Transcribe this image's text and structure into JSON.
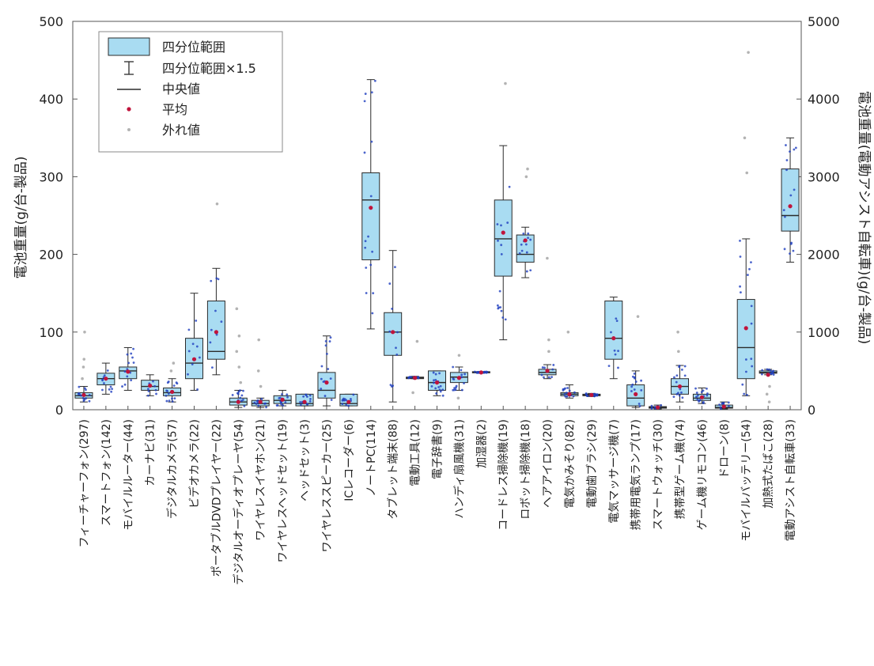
{
  "chart_data": {
    "type": "box",
    "ylabel": "電池重量(g/台-製品)",
    "y2label": "電池重量(電動アシスト自転車)(g/台-製品)",
    "ylim": [
      0,
      500
    ],
    "y2lim": [
      0,
      5000
    ],
    "yticks": [
      "0",
      "100",
      "200",
      "300",
      "400",
      "500"
    ],
    "y2ticks": [
      "0",
      "1000",
      "2000",
      "3000",
      "4000",
      "5000"
    ],
    "grid": false,
    "legend_position": "top-left",
    "legend": {
      "iqr": "四分位範囲",
      "whisker": "四分位範囲×1.5",
      "median": "中央値",
      "mean": "平均",
      "outlier": "外れ値"
    },
    "colors": {
      "box_fill": "#a9dcf2",
      "box_stroke": "#2b2b2b",
      "points": "#1f3fbf",
      "mean": "#c0143c",
      "outlier": "#b3b3b3"
    },
    "series": [
      {
        "label": "フィーチャーフォン(297)",
        "q1": 15,
        "median": 18,
        "q3": 22,
        "wlow": 10,
        "whigh": 30,
        "mean": 19,
        "outliers": [
          40,
          55,
          65,
          100
        ]
      },
      {
        "label": "スマートフォン(142)",
        "q1": 32,
        "median": 40,
        "q3": 47,
        "wlow": 20,
        "whigh": 60,
        "mean": 40,
        "outliers": []
      },
      {
        "label": "モバイルルーター(44)",
        "q1": 40,
        "median": 50,
        "q3": 55,
        "wlow": 25,
        "whigh": 80,
        "mean": 49,
        "outliers": []
      },
      {
        "label": "カーナビ(31)",
        "q1": 25,
        "median": 30,
        "q3": 38,
        "wlow": 18,
        "whigh": 45,
        "mean": 31,
        "outliers": []
      },
      {
        "label": "デジタルカメラ(57)",
        "q1": 18,
        "median": 22,
        "q3": 28,
        "wlow": 10,
        "whigh": 40,
        "mean": 23,
        "outliers": [
          50,
          60
        ]
      },
      {
        "label": "ビデオカメラ(22)",
        "q1": 40,
        "median": 60,
        "q3": 92,
        "wlow": 25,
        "whigh": 150,
        "mean": 65,
        "outliers": []
      },
      {
        "label": "ポータブルDVDプレイヤー(22)",
        "q1": 65,
        "median": 75,
        "q3": 140,
        "wlow": 45,
        "whigh": 182,
        "mean": 100,
        "outliers": [
          265
        ]
      },
      {
        "label": "デジタルオーディオプレーヤ(54)",
        "q1": 6,
        "median": 10,
        "q3": 15,
        "wlow": 3,
        "whigh": 25,
        "mean": 10,
        "outliers": [
          35,
          55,
          75,
          95,
          130
        ]
      },
      {
        "label": "ワイヤレスイヤホン(21)",
        "q1": 5,
        "median": 8,
        "q3": 12,
        "wlow": 3,
        "whigh": 15,
        "mean": 10,
        "outliers": [
          30,
          50,
          90
        ]
      },
      {
        "label": "ワイヤレスヘッドセット(19)",
        "q1": 8,
        "median": 12,
        "q3": 18,
        "wlow": 5,
        "whigh": 25,
        "mean": 13,
        "outliers": []
      },
      {
        "label": "ヘッドセット(3)",
        "q1": 5,
        "median": 8,
        "q3": 20,
        "wlow": 5,
        "whigh": 20,
        "mean": 10,
        "outliers": []
      },
      {
        "label": "ワイヤレススピーカー(25)",
        "q1": 15,
        "median": 25,
        "q3": 48,
        "wlow": 5,
        "whigh": 95,
        "mean": 35,
        "outliers": []
      },
      {
        "label": "ICレコーダー(6)",
        "q1": 5,
        "median": 8,
        "q3": 20,
        "wlow": 5,
        "whigh": 20,
        "mean": 10,
        "outliers": []
      },
      {
        "label": "ノートPC(114)",
        "q1": 193,
        "median": 270,
        "q3": 305,
        "wlow": 104,
        "whigh": 425,
        "mean": 260,
        "outliers": []
      },
      {
        "label": "タブレット端末(88)",
        "q1": 70,
        "median": 100,
        "q3": 125,
        "wlow": 10,
        "whigh": 205,
        "mean": 100,
        "outliers": []
      },
      {
        "label": "電動工具(12)",
        "q1": 40,
        "median": 41,
        "q3": 42,
        "wlow": 40,
        "whigh": 43,
        "mean": 41,
        "outliers": [
          22,
          88
        ]
      },
      {
        "label": "電子辞書(9)",
        "q1": 25,
        "median": 35,
        "q3": 50,
        "wlow": 18,
        "whigh": 50,
        "mean": 35,
        "outliers": []
      },
      {
        "label": "ハンディ扇風機(31)",
        "q1": 35,
        "median": 42,
        "q3": 48,
        "wlow": 25,
        "whigh": 55,
        "mean": 41,
        "outliers": [
          15,
          70
        ]
      },
      {
        "label": "加湿器(2)",
        "q1": 48,
        "median": 48,
        "q3": 49,
        "wlow": 47,
        "whigh": 49,
        "mean": 48,
        "outliers": []
      },
      {
        "label": "コードレス掃除機(19)",
        "q1": 172,
        "median": 220,
        "q3": 270,
        "wlow": 90,
        "whigh": 340,
        "mean": 228,
        "outliers": [
          420
        ]
      },
      {
        "label": "ロボット掃除機(18)",
        "q1": 190,
        "median": 200,
        "q3": 225,
        "wlow": 170,
        "whigh": 235,
        "mean": 218,
        "outliers": [
          300,
          310
        ]
      },
      {
        "label": "ヘアアイロン(20)",
        "q1": 45,
        "median": 48,
        "q3": 52,
        "wlow": 40,
        "whigh": 58,
        "mean": 50,
        "outliers": [
          75,
          90,
          195
        ]
      },
      {
        "label": "電気かみそり(82)",
        "q1": 18,
        "median": 20,
        "q3": 22,
        "wlow": 15,
        "whigh": 32,
        "mean": 20,
        "outliers": [
          100
        ]
      },
      {
        "label": "電動歯ブラシ(29)",
        "q1": 18,
        "median": 19,
        "q3": 20,
        "wlow": 17,
        "whigh": 21,
        "mean": 19,
        "outliers": []
      },
      {
        "label": "電気マッサージ機(7)",
        "q1": 65,
        "median": 92,
        "q3": 140,
        "wlow": 40,
        "whigh": 145,
        "mean": 92,
        "outliers": []
      },
      {
        "label": "携帯用電気ランプ(17)",
        "q1": 5,
        "median": 15,
        "q3": 32,
        "wlow": 3,
        "whigh": 50,
        "mean": 20,
        "outliers": [
          120
        ]
      },
      {
        "label": "スマートウォッチ(30)",
        "q1": 2,
        "median": 3,
        "q3": 4,
        "wlow": 1,
        "whigh": 6,
        "mean": 3,
        "outliers": []
      },
      {
        "label": "携帯型ゲーム機(74)",
        "q1": 20,
        "median": 30,
        "q3": 40,
        "wlow": 10,
        "whigh": 57,
        "mean": 30,
        "outliers": [
          75,
          100
        ]
      },
      {
        "label": "ゲーム機リモコン(46)",
        "q1": 12,
        "median": 15,
        "q3": 20,
        "wlow": 8,
        "whigh": 28,
        "mean": 16,
        "outliers": []
      },
      {
        "label": "ドローン(8)",
        "q1": 2,
        "median": 3,
        "q3": 6,
        "wlow": 1,
        "whigh": 10,
        "mean": 4,
        "outliers": []
      },
      {
        "label": "モバイルバッテリー(54)",
        "q1": 40,
        "median": 80,
        "q3": 142,
        "wlow": 18,
        "whigh": 220,
        "mean": 105,
        "outliers": [
          305,
          350,
          460
        ]
      },
      {
        "label": "加熱式たばこ(28)",
        "q1": 47,
        "median": 48,
        "q3": 50,
        "wlow": 45,
        "whigh": 52,
        "mean": 45,
        "outliers": [
          10,
          20,
          30
        ]
      },
      {
        "label": "電動アシスト自転車(33)",
        "q1": 230,
        "median": 250,
        "q3": 310,
        "wlow": 190,
        "whigh": 350,
        "mean": 262,
        "outliers": []
      }
    ]
  }
}
